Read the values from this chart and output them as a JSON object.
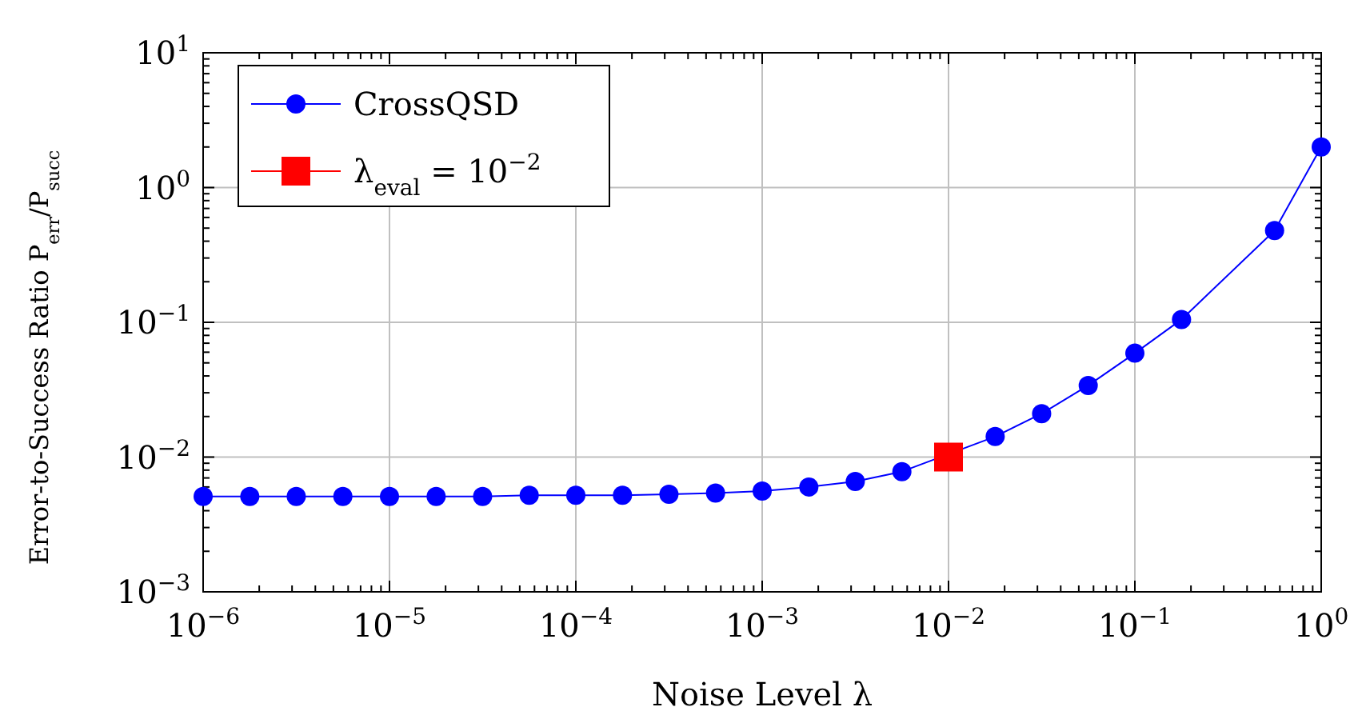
{
  "chart_data": {
    "type": "line",
    "xlabel": "Noise Level λ",
    "ylabel": "Error-to-Success Ratio P$_{err}$/P$_{succ}$",
    "log": "xy",
    "grid": true,
    "legend": "top left",
    "line_style": "solid",
    "xlim": [
      1e-06,
      1
    ],
    "ylim": [
      0.001,
      10
    ],
    "xticks": [
      {
        "value": 1e-06,
        "label": "10$^{−6}$"
      },
      {
        "value": 1e-05,
        "label": "10$^{−5}$"
      },
      {
        "value": 0.0001,
        "label": "10$^{−4}$"
      },
      {
        "value": 0.001,
        "label": "10$^{−3}$"
      },
      {
        "value": 0.01,
        "label": "10$^{−2}$"
      },
      {
        "value": 0.1,
        "label": "10$^{−1}$"
      },
      {
        "value": 1,
        "label": "10$^{0}$"
      }
    ],
    "yticks": [
      {
        "value": 0.001,
        "label": "10$^{−3}$"
      },
      {
        "value": 0.01,
        "label": "10$^{−2}$"
      },
      {
        "value": 0.1,
        "label": "10$^{−1}$"
      },
      {
        "value": 1,
        "label": "10$^{0}$"
      },
      {
        "value": 10,
        "label": "10$^{1}$"
      }
    ],
    "series": [
      {
        "name": "CrossQSD",
        "color": "#0000ff",
        "marker": "circle",
        "x": [
          1e-06,
          1.78e-06,
          3.16e-06,
          5.62e-06,
          1e-05,
          1.78e-05,
          3.16e-05,
          5.62e-05,
          0.0001,
          0.000178,
          0.000316,
          0.000562,
          0.001,
          0.00178,
          0.00316,
          0.00562,
          0.01,
          0.0178,
          0.0316,
          0.0562,
          0.1,
          0.178,
          0.562,
          1
        ],
        "values": [
          0.0051,
          0.0051,
          0.0051,
          0.0051,
          0.0051,
          0.0051,
          0.0051,
          0.0052,
          0.0052,
          0.0052,
          0.0053,
          0.0054,
          0.0056,
          0.006,
          0.0066,
          0.0078,
          null,
          0.0142,
          0.021,
          0.034,
          0.059,
          0.105,
          0.48,
          2
        ]
      },
      {
        "name": "λ$_{eval}$ = 10$^{−2}$",
        "color": "#ff0000",
        "marker": "square",
        "x": [
          0.01
        ],
        "values": [
          0.01
        ]
      }
    ]
  }
}
